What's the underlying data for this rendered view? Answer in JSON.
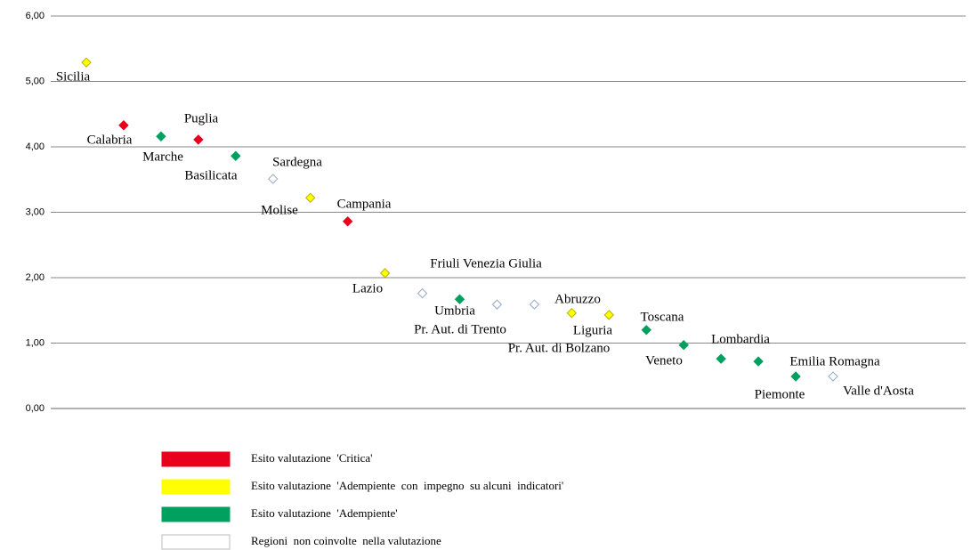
{
  "chart_data": {
    "type": "scatter",
    "categories": [
      "Sicilia",
      "Calabria",
      "Marche",
      "Puglia",
      "Basilicata",
      "Sardegna",
      "Molise",
      "Campania",
      "Lazio",
      "Friuli Venezia Giulia",
      "Umbria",
      "Pr. Aut. di Trento",
      "Pr. Aut. di Bolzano",
      "Abruzzo",
      "Liguria",
      "Toscana",
      "Lombardia",
      "Veneto",
      "Emilia Romagna",
      "Piemonte",
      "Valle d'Aosta"
    ],
    "series": [
      {
        "name": "Esito valutazione  'Critica'",
        "color": "#e8001c",
        "edgecolor": "#e8001c",
        "values": [
          null,
          4.33,
          null,
          4.11,
          null,
          null,
          null,
          2.86,
          null,
          null,
          null,
          null,
          null,
          null,
          null,
          null,
          null,
          null,
          null,
          null,
          null
        ]
      },
      {
        "name": "Esito valutazione  'Adempiente  con  impegno  su alcuni  indicatori'",
        "color": "#ffff00",
        "edgecolor": "#b8b000",
        "values": [
          5.29,
          null,
          null,
          null,
          null,
          null,
          3.22,
          null,
          2.07,
          null,
          null,
          null,
          null,
          1.46,
          1.43,
          null,
          null,
          null,
          null,
          null,
          null
        ]
      },
      {
        "name": "Esito valutazione  'Adempiente'",
        "color": "#00a060",
        "edgecolor": "#00a060",
        "values": [
          null,
          null,
          4.16,
          null,
          3.86,
          null,
          null,
          null,
          null,
          null,
          1.67,
          null,
          null,
          null,
          null,
          1.2,
          0.97,
          0.76,
          0.72,
          0.49,
          null
        ]
      },
      {
        "name": "Regioni  non coinvolte  nella valutazione",
        "color": "#ffffff",
        "edgecolor": "#95aac8",
        "values": [
          null,
          null,
          null,
          null,
          null,
          3.51,
          null,
          null,
          null,
          1.76,
          null,
          1.59,
          1.59,
          null,
          null,
          null,
          null,
          null,
          null,
          null,
          0.49
        ]
      }
    ],
    "ylim": [
      0,
      6
    ],
    "yticks": [
      {
        "value": 0,
        "label": "0,00"
      },
      {
        "value": 1,
        "label": "1,00"
      },
      {
        "value": 2,
        "label": "2,00"
      },
      {
        "value": 3,
        "label": "3,00"
      },
      {
        "value": 4,
        "label": "4,00"
      },
      {
        "value": 5,
        "label": "5,00"
      },
      {
        "value": 6,
        "label": "6,00"
      }
    ],
    "grid": true
  }
}
